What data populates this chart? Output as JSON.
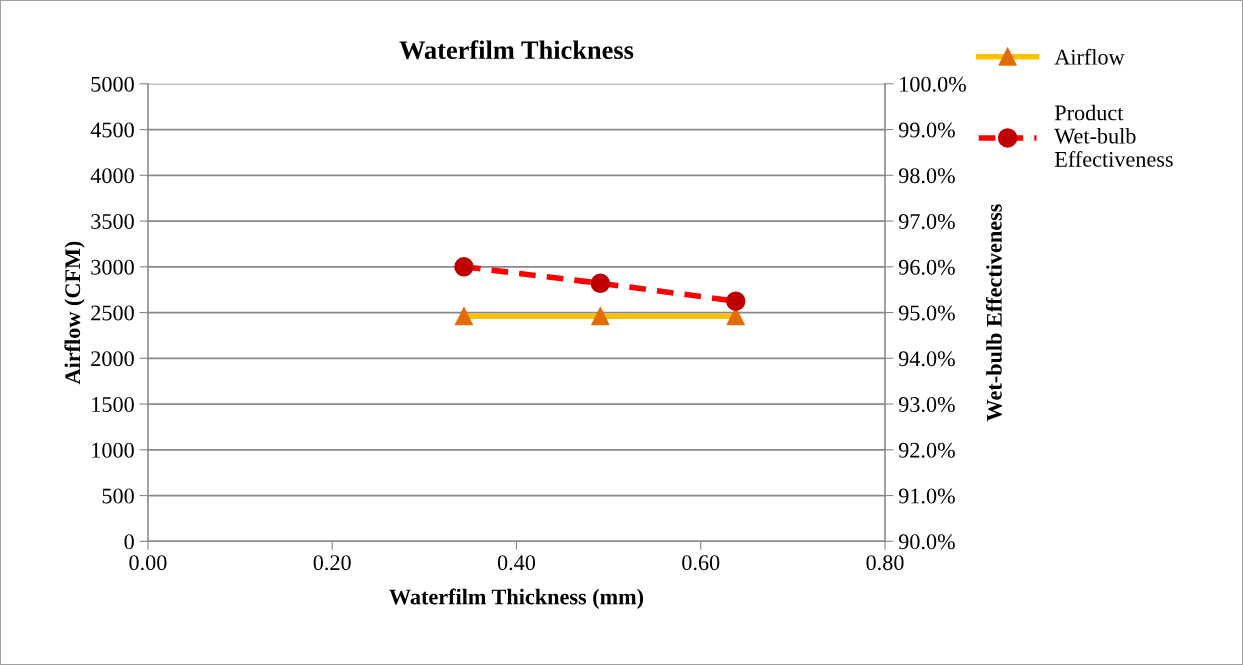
{
  "chart_data": {
    "type": "line",
    "title": "Waterfilm Thickness",
    "xlabel": "Waterfilm Thickness (mm)",
    "ylabel": "Airflow (CFM)",
    "y2label": "Wet-bulb Effectiveness",
    "x": [
      0.343,
      0.491,
      0.638
    ],
    "series": [
      {
        "name": "Airflow",
        "color": "#ffc000",
        "colors": [
          "#e36c09",
          "#e36c09",
          "#e36c09"
        ],
        "marker": "triangle",
        "line_style": "solid",
        "values": [
          2460,
          2460,
          2460
        ]
      },
      {
        "name": "Product Wet-bulb Effectiveness",
        "axis": "y2",
        "color": "#ff0000",
        "colors": [
          "#c00000",
          "#c00000",
          "#c00000"
        ],
        "marker": "circle",
        "line_style": "dashed",
        "values": [
          96.0,
          95.64,
          95.25
        ]
      }
    ],
    "xlim": [
      0,
      0.8
    ],
    "xticks": [
      {
        "value": 0,
        "label": "0.00"
      },
      {
        "value": 0.2,
        "label": "0.20"
      },
      {
        "value": 0.4,
        "label": "0.40"
      },
      {
        "value": 0.6,
        "label": "0.60"
      },
      {
        "value": 0.8,
        "label": "0.80"
      }
    ],
    "ylim": [
      0,
      5000
    ],
    "yticks": [
      0,
      500,
      1000,
      1500,
      2000,
      2500,
      3000,
      3500,
      4000,
      4500,
      5000
    ],
    "y2lim": [
      90,
      100
    ],
    "y2ticks": [
      {
        "value": 90,
        "label": "90.0%"
      },
      {
        "value": 91,
        "label": "91.0%"
      },
      {
        "value": 92,
        "label": "92.0%"
      },
      {
        "value": 93,
        "label": "93.0%"
      },
      {
        "value": 94,
        "label": "94.0%"
      },
      {
        "value": 95,
        "label": "95.0%"
      },
      {
        "value": 96,
        "label": "96.0%"
      },
      {
        "value": 97,
        "label": "97.0%"
      },
      {
        "value": 98,
        "label": "98.0%"
      },
      {
        "value": 99,
        "label": "99.0%"
      },
      {
        "value": 100,
        "label": "100.0%"
      }
    ],
    "grid": "y",
    "legend": "right"
  }
}
